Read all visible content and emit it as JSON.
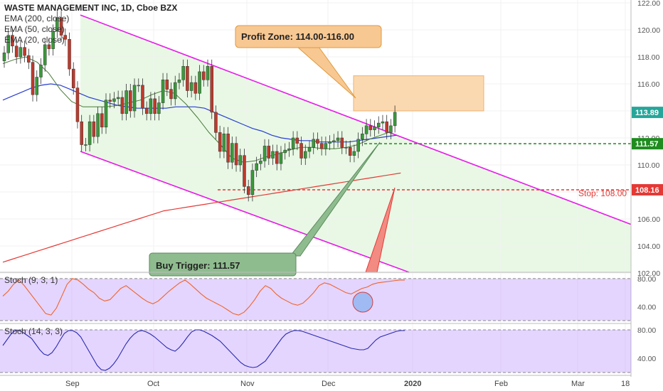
{
  "chart_data": {
    "type": "candlestick",
    "symbol_title": "WASTE MANAGEMENT INC, 1D, Cboe BZX",
    "indicators": [
      "EMA (200, close)",
      "EMA (50, close)",
      "EMA (20, close)"
    ],
    "ylim": [
      102,
      122
    ],
    "yticks": [
      "122.00",
      "120.00",
      "118.00",
      "116.00",
      "114.00",
      "112.00",
      "110.00",
      "108.00",
      "106.00",
      "104.00",
      "102.00"
    ],
    "xticks": [
      "Sep",
      "Oct",
      "Nov",
      "Dec",
      "2020",
      "Feb",
      "Mar",
      "18"
    ],
    "price_labels": [
      {
        "text": "113.89",
        "color": "#26a69a"
      },
      {
        "text": "111.57",
        "color": "#1e8c1e"
      },
      {
        "text": "108.16",
        "color": "#e53935"
      }
    ],
    "candles_close": [
      118.3,
      119.6,
      118.8,
      118.0,
      118.7,
      118.1,
      117.6,
      115.2,
      116.5,
      117.4,
      118.9,
      118.6,
      119.9,
      120.9,
      119.6,
      119.3,
      117.1,
      115.7,
      113.2,
      111.5,
      111.5,
      113.2,
      112.1,
      113.8,
      112.8,
      114.8,
      114.7,
      114.9,
      115.0,
      113.8,
      115.5,
      114.0,
      115.9,
      115.9,
      114.2,
      113.8,
      114.9,
      113.8,
      114.6,
      116.3,
      115.6,
      114.9,
      116.1,
      116.3,
      117.3,
      115.5,
      116.1,
      115.3,
      116.9,
      116.3,
      117.3,
      113.9,
      112.4,
      111.0,
      112.3,
      110.2,
      111.6,
      110.0,
      110.7,
      108.4,
      107.8,
      109.6,
      110.1,
      110.3,
      111.4,
      110.5,
      111.0,
      110.1,
      110.9,
      111.1,
      111.2,
      112.0,
      111.6,
      110.5,
      111.0,
      111.3,
      111.9,
      111.6,
      111.2,
      111.6,
      111.7,
      111.8,
      112.0,
      111.3,
      111.3,
      110.7,
      111.0,
      111.9,
      112.3,
      112.9,
      112.6,
      112.8,
      113.1,
      113.2,
      112.4,
      112.9,
      113.9
    ],
    "ema200": [
      102.8,
      103.0,
      103.2,
      103.4,
      103.6,
      103.8,
      104.0,
      104.2,
      104.4,
      104.6,
      104.8,
      105.0,
      105.2,
      105.4,
      105.6,
      105.8,
      106.0,
      106.2,
      106.4,
      106.6,
      106.7,
      106.8,
      106.9,
      107.0,
      107.1,
      107.2,
      107.3,
      107.4,
      107.5,
      107.6,
      107.7,
      107.8,
      107.9,
      108.0,
      108.1,
      108.2,
      108.3,
      108.4,
      108.5,
      108.6,
      108.7,
      108.8,
      108.9,
      109.0,
      109.1,
      109.2,
      109.3,
      109.4
    ],
    "ema50": [
      114.8,
      115.1,
      115.4,
      115.7,
      115.9,
      116.0,
      115.9,
      115.6,
      115.3,
      115.0,
      114.8,
      114.6,
      114.4,
      114.3,
      114.2,
      114.2,
      114.2,
      114.2,
      114.3,
      114.3,
      114.3,
      114.2,
      113.9,
      113.6,
      113.3,
      113.0,
      112.7,
      112.5,
      112.2,
      112.0,
      111.9,
      111.8,
      111.8,
      111.7,
      111.7,
      111.7,
      111.7,
      111.8,
      111.9,
      112.0,
      112.1,
      112.2
    ],
    "ema20": [
      117.5,
      117.8,
      118.0,
      117.6,
      116.8,
      115.6,
      114.7,
      114.3,
      114.3,
      114.3,
      114.4,
      114.6,
      114.8,
      115.2,
      115.5,
      115.3,
      114.5,
      113.5,
      112.4,
      111.5,
      110.5,
      110.2,
      110.3,
      110.6,
      110.8,
      111.1,
      111.3,
      111.3,
      111.2,
      111.2,
      111.3,
      111.5,
      111.9,
      112.2,
      112.5
    ],
    "channel": {
      "upper": "121.0 (Sep) to 105.5 (Mar)",
      "lower": "111.0 (Sep) to 102.0 (Dec)"
    },
    "annotations": [
      {
        "text": "Profit Zone: 114.00-116.00",
        "color": "#f8c893"
      },
      {
        "text": "Buy Trigger: 111.57",
        "color": "#8fbc8f"
      },
      {
        "text": "Stop: 108.00",
        "color": "#e53935"
      }
    ],
    "stoch1": {
      "title": "Stoch (9, 3, 1)",
      "ylim": [
        20,
        85
      ],
      "yticks": [
        "80.00",
        "40.00"
      ],
      "k": [
        55,
        62,
        72,
        78,
        70,
        60,
        50,
        40,
        30,
        28,
        38,
        55,
        72,
        80,
        78,
        72,
        65,
        60,
        52,
        48,
        50,
        58,
        66,
        70,
        64,
        58,
        52,
        47,
        44,
        48,
        55,
        62,
        68,
        74,
        78,
        72,
        65,
        58,
        52,
        48,
        44,
        40,
        35,
        30,
        28,
        32,
        40,
        50,
        62,
        70,
        66,
        58,
        52,
        48,
        44,
        42,
        45,
        52,
        60,
        70,
        74,
        72,
        68,
        64,
        60,
        58,
        62,
        66,
        68,
        72,
        74,
        75,
        76,
        77,
        78,
        78
      ]
    },
    "stoch2": {
      "title": "Stoch (14, 3, 3)",
      "ylim": [
        20,
        85
      ],
      "yticks": [
        "80.00",
        "40.00"
      ],
      "k": [
        58,
        66,
        74,
        79,
        79,
        76,
        72,
        68,
        60,
        52,
        46,
        44,
        48,
        56,
        66,
        75,
        79,
        79,
        76,
        70,
        60,
        50,
        40,
        30,
        24,
        23,
        26,
        32,
        40,
        50,
        60,
        68,
        74,
        78,
        79,
        77,
        74,
        70,
        65,
        60,
        55,
        52,
        50,
        55,
        62,
        70,
        77,
        80,
        80,
        78,
        75,
        72,
        68,
        64,
        58,
        52,
        46,
        40,
        34,
        30,
        28,
        27,
        28,
        32,
        36,
        44,
        52,
        60,
        68,
        74,
        77,
        79,
        79,
        78,
        76,
        74,
        72,
        70,
        68,
        66,
        64,
        62,
        60,
        58,
        56,
        54,
        53,
        52,
        52,
        54,
        60,
        66,
        70,
        72,
        74,
        76,
        78,
        79,
        79
      ]
    }
  }
}
